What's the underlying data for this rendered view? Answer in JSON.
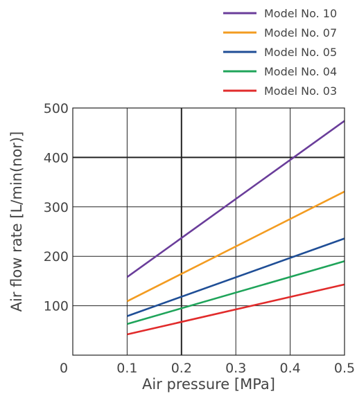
{
  "chart_data": {
    "type": "line",
    "title": "",
    "xlabel": "Air pressure [MPa]",
    "ylabel": "Air flow rate [L/min(nor)]",
    "xlim": [
      0,
      0.5
    ],
    "ylim": [
      0,
      500
    ],
    "xticks": [
      "0",
      "0.1",
      "0.2",
      "0.3",
      "0.4",
      "0.5"
    ],
    "yticks": [
      "100",
      "200",
      "300",
      "400",
      "500"
    ],
    "grid": true,
    "legend_position": "top-right",
    "series": [
      {
        "name": "Model No. 10",
        "color": "#6a3d9a",
        "x": [
          0.1,
          0.5
        ],
        "y": [
          158,
          474
        ]
      },
      {
        "name": "Model No. 07",
        "color": "#f39c21",
        "x": [
          0.1,
          0.5
        ],
        "y": [
          109,
          331
        ]
      },
      {
        "name": "Model No. 05",
        "color": "#1f4e96",
        "x": [
          0.1,
          0.5
        ],
        "y": [
          79,
          236
        ]
      },
      {
        "name": "Model No. 04",
        "color": "#1fa45a",
        "x": [
          0.1,
          0.5
        ],
        "y": [
          63,
          190
        ]
      },
      {
        "name": "Model No. 03",
        "color": "#e12b2b",
        "x": [
          0.1,
          0.5
        ],
        "y": [
          42,
          143
        ]
      }
    ]
  }
}
